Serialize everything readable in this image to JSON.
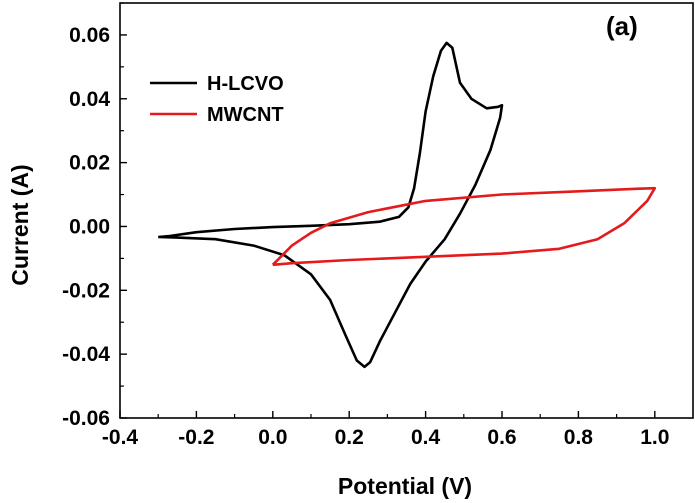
{
  "chart_data": {
    "type": "line",
    "panel_label": "(a)",
    "xlabel": "Potential (V)",
    "ylabel": "Current (A)",
    "xlim": [
      -0.4,
      1.1
    ],
    "ylim": [
      -0.06,
      0.07
    ],
    "x_ticks": [
      -0.4,
      -0.2,
      0.0,
      0.2,
      0.4,
      0.6,
      0.8,
      1.0
    ],
    "x_tick_labels": [
      "-0.4",
      "-0.2",
      "0.0",
      "0.2",
      "0.4",
      "0.6",
      "0.8",
      "1.0"
    ],
    "y_ticks": [
      -0.06,
      -0.04,
      -0.02,
      0.0,
      0.02,
      0.04,
      0.06
    ],
    "y_tick_labels": [
      "-0.06",
      "-0.04",
      "-0.02",
      "0.00",
      "0.02",
      "0.04",
      "0.06"
    ],
    "grid": false,
    "legend_position": "top-left",
    "series": [
      {
        "name": "H-LCVO",
        "color": "#000000",
        "points": [
          [
            -0.3,
            -0.0033
          ],
          [
            -0.27,
            -0.003
          ],
          [
            -0.2,
            -0.0018
          ],
          [
            -0.1,
            -0.0008
          ],
          [
            0.0,
            -0.0002
          ],
          [
            0.1,
            0.0002
          ],
          [
            0.2,
            0.0007
          ],
          [
            0.28,
            0.0015
          ],
          [
            0.33,
            0.003
          ],
          [
            0.355,
            0.006
          ],
          [
            0.37,
            0.012
          ],
          [
            0.385,
            0.023
          ],
          [
            0.4,
            0.036
          ],
          [
            0.42,
            0.047
          ],
          [
            0.44,
            0.055
          ],
          [
            0.455,
            0.0575
          ],
          [
            0.47,
            0.056
          ],
          [
            0.49,
            0.045
          ],
          [
            0.52,
            0.04
          ],
          [
            0.56,
            0.037
          ],
          [
            0.59,
            0.0375
          ],
          [
            0.6,
            0.038
          ],
          [
            0.595,
            0.034
          ],
          [
            0.57,
            0.024
          ],
          [
            0.53,
            0.013
          ],
          [
            0.49,
            0.004
          ],
          [
            0.45,
            -0.004
          ],
          [
            0.4,
            -0.011
          ],
          [
            0.36,
            -0.018
          ],
          [
            0.32,
            -0.027
          ],
          [
            0.28,
            -0.036
          ],
          [
            0.255,
            -0.0425
          ],
          [
            0.24,
            -0.044
          ],
          [
            0.22,
            -0.042
          ],
          [
            0.19,
            -0.034
          ],
          [
            0.15,
            -0.023
          ],
          [
            0.1,
            -0.015
          ],
          [
            0.03,
            -0.009
          ],
          [
            -0.05,
            -0.006
          ],
          [
            -0.15,
            -0.004
          ],
          [
            -0.25,
            -0.0035
          ],
          [
            -0.3,
            -0.0033
          ]
        ]
      },
      {
        "name": "MWCNT",
        "color": "#e41a1c",
        "points": [
          [
            0.0,
            -0.012
          ],
          [
            0.05,
            -0.006
          ],
          [
            0.1,
            -0.002
          ],
          [
            0.15,
            0.001
          ],
          [
            0.25,
            0.0045
          ],
          [
            0.4,
            0.008
          ],
          [
            0.6,
            0.01
          ],
          [
            0.8,
            0.011
          ],
          [
            0.95,
            0.0118
          ],
          [
            1.0,
            0.012
          ],
          [
            0.98,
            0.008
          ],
          [
            0.92,
            0.001
          ],
          [
            0.85,
            -0.004
          ],
          [
            0.75,
            -0.007
          ],
          [
            0.6,
            -0.0085
          ],
          [
            0.4,
            -0.0095
          ],
          [
            0.2,
            -0.0105
          ],
          [
            0.05,
            -0.0115
          ],
          [
            0.0,
            -0.012
          ]
        ]
      }
    ]
  }
}
